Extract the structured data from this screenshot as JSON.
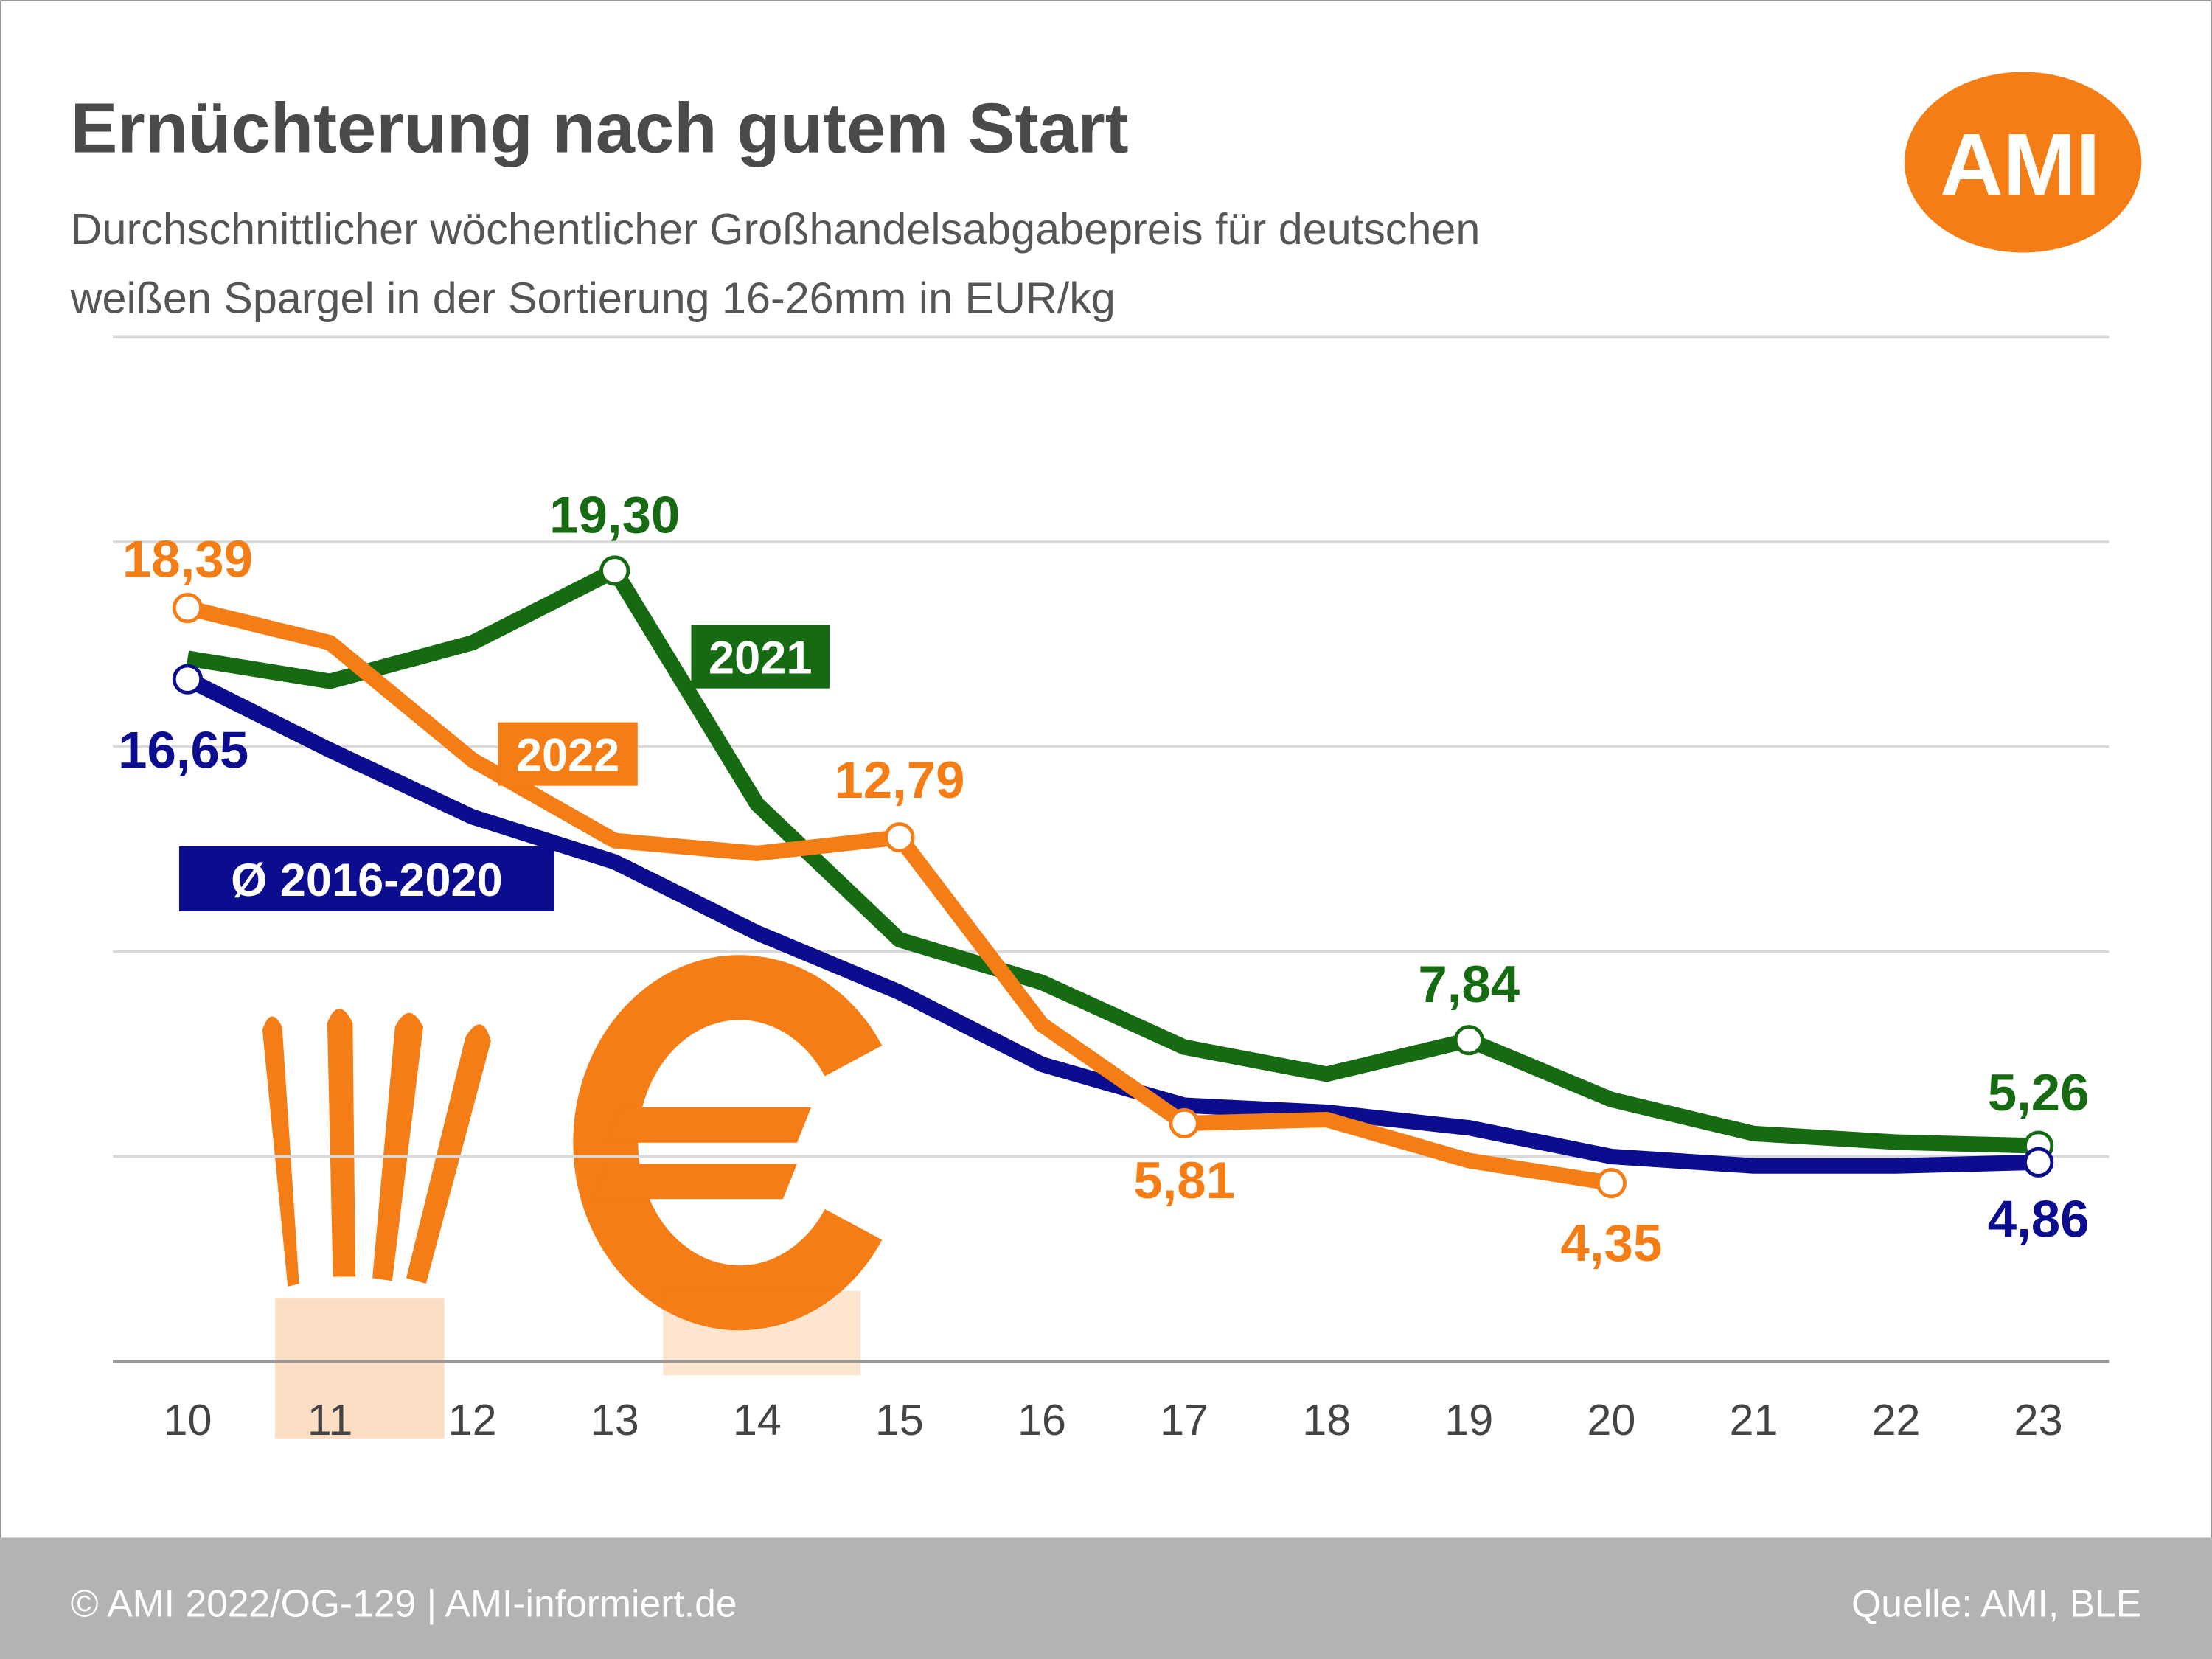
{
  "chart_data": {
    "type": "line",
    "title": "Ernüchterung nach gutem Start",
    "subtitle": [
      "Durchschnittlicher wöchentlicher Großhandelsabgabepreis für deutschen",
      "weißen Spargel in der Sortierung 16-26mm in EUR/kg"
    ],
    "logo": "AMI",
    "footer_left": "© AMI 2022/OG-129 | AMI-informiert.de",
    "footer_right": "Quelle: AMI, BLE",
    "categories": [
      "10",
      "11",
      "12",
      "13",
      "14",
      "15",
      "16",
      "17",
      "18",
      "19",
      "20",
      "21",
      "22",
      "23"
    ],
    "ylim": [
      0,
      25
    ],
    "yticks": [
      0,
      5,
      10,
      15,
      20,
      25
    ],
    "grid": true,
    "series": [
      {
        "name": "2021",
        "color": "#166b12",
        "values": [
          17.16,
          16.6,
          17.54,
          19.3,
          13.6,
          10.29,
          9.25,
          7.67,
          7.01,
          7.84,
          6.39,
          5.56,
          5.35,
          5.26
        ],
        "value_labels": [
          null,
          null,
          null,
          "19,30",
          null,
          null,
          null,
          null,
          null,
          "7,84",
          null,
          null,
          null,
          "5,26"
        ]
      },
      {
        "name": "2022",
        "color": "#f47d16",
        "values": [
          18.39,
          17.54,
          14.68,
          12.71,
          12.4,
          12.79,
          8.22,
          5.81,
          5.9,
          4.9,
          4.35,
          null,
          null,
          null
        ],
        "value_labels": [
          "18,39",
          null,
          null,
          null,
          null,
          "12,79",
          null,
          "5,81",
          null,
          null,
          "4,35",
          null,
          null,
          null
        ]
      },
      {
        "name": "Ø 2016-2020",
        "color": "#0c0c8e",
        "values": [
          16.65,
          14.92,
          13.29,
          12.19,
          10.46,
          9.01,
          7.25,
          6.25,
          6.08,
          5.7,
          5.0,
          4.77,
          4.77,
          4.86
        ],
        "value_labels": [
          "16,65",
          null,
          null,
          null,
          null,
          null,
          null,
          null,
          null,
          null,
          null,
          null,
          null,
          "4,86"
        ]
      }
    ]
  }
}
